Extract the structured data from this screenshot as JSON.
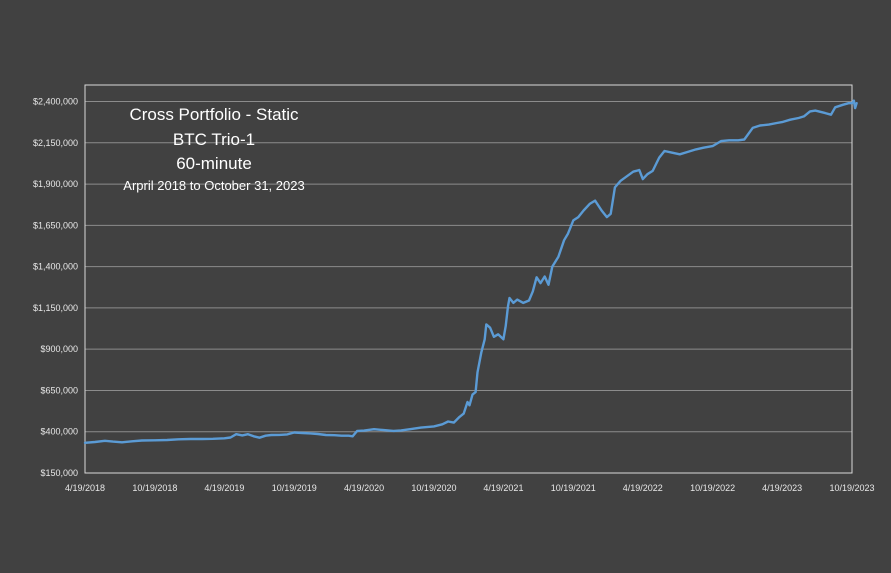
{
  "chart_data": {
    "type": "line",
    "title": [
      "Cross Portfolio - Static",
      "BTC Trio-1",
      "60-minute",
      "Arpril 2018 to October 31, 2023"
    ],
    "xlabel": "",
    "ylabel": "",
    "ylim": [
      150000,
      2500000
    ],
    "y_ticks": [
      {
        "value": 150000,
        "label": "$150,000"
      },
      {
        "value": 400000,
        "label": "$400,000"
      },
      {
        "value": 650000,
        "label": "$650,000"
      },
      {
        "value": 900000,
        "label": "$900,000"
      },
      {
        "value": 1150000,
        "label": "$1,150,000"
      },
      {
        "value": 1400000,
        "label": "$1,400,000"
      },
      {
        "value": 1650000,
        "label": "$1,650,000"
      },
      {
        "value": 1900000,
        "label": "$1,900,000"
      },
      {
        "value": 2150000,
        "label": "$2,150,000"
      },
      {
        "value": 2400000,
        "label": "$2,400,000"
      }
    ],
    "x_range": [
      "2018-04-19",
      "2023-10-19"
    ],
    "x_ticks": [
      {
        "value": "2018-04-19",
        "label": "4/19/2018"
      },
      {
        "value": "2018-10-19",
        "label": "10/19/2018"
      },
      {
        "value": "2019-04-19",
        "label": "4/19/2019"
      },
      {
        "value": "2019-10-19",
        "label": "10/19/2019"
      },
      {
        "value": "2020-04-19",
        "label": "4/19/2020"
      },
      {
        "value": "2020-10-19",
        "label": "10/19/2020"
      },
      {
        "value": "2021-04-19",
        "label": "4/19/2021"
      },
      {
        "value": "2021-10-19",
        "label": "10/19/2021"
      },
      {
        "value": "2022-04-19",
        "label": "4/19/2022"
      },
      {
        "value": "2022-10-19",
        "label": "10/19/2022"
      },
      {
        "value": "2023-04-19",
        "label": "4/19/2023"
      },
      {
        "value": "2023-10-19",
        "label": "10/19/2023"
      }
    ],
    "grid": true,
    "legend": "none",
    "colors": {
      "background": "#414141",
      "plot_border": "#d9d9d9",
      "gridline": "#8c8c8c",
      "series": "#5b9bd5",
      "text": "#e8e8e8",
      "title": "#ffffff"
    },
    "series": [
      {
        "values": [
          [
            "2018-04-19",
            333000
          ],
          [
            "2018-05-15",
            338000
          ],
          [
            "2018-06-10",
            345000
          ],
          [
            "2018-07-01",
            340000
          ],
          [
            "2018-07-25",
            336000
          ],
          [
            "2018-08-20",
            342000
          ],
          [
            "2018-09-15",
            347000
          ],
          [
            "2018-10-19",
            348000
          ],
          [
            "2018-11-20",
            350000
          ],
          [
            "2018-12-20",
            354000
          ],
          [
            "2019-01-20",
            356000
          ],
          [
            "2019-02-20",
            356000
          ],
          [
            "2019-03-20",
            357000
          ],
          [
            "2019-04-19",
            360000
          ],
          [
            "2019-05-05",
            365000
          ],
          [
            "2019-05-20",
            385000
          ],
          [
            "2019-06-05",
            378000
          ],
          [
            "2019-06-20",
            385000
          ],
          [
            "2019-07-05",
            372000
          ],
          [
            "2019-07-20",
            364000
          ],
          [
            "2019-08-05",
            376000
          ],
          [
            "2019-08-20",
            380000
          ],
          [
            "2019-09-10",
            381000
          ],
          [
            "2019-10-01",
            384000
          ],
          [
            "2019-10-19",
            395000
          ],
          [
            "2019-11-10",
            392000
          ],
          [
            "2019-12-01",
            390000
          ],
          [
            "2019-12-20",
            386000
          ],
          [
            "2020-01-10",
            380000
          ],
          [
            "2020-02-01",
            379000
          ],
          [
            "2020-02-20",
            376000
          ],
          [
            "2020-03-10",
            376000
          ],
          [
            "2020-03-20",
            372000
          ],
          [
            "2020-04-01",
            405000
          ],
          [
            "2020-04-19",
            407000
          ],
          [
            "2020-05-15",
            415000
          ],
          [
            "2020-06-10",
            410000
          ],
          [
            "2020-07-05",
            405000
          ],
          [
            "2020-07-25",
            408000
          ],
          [
            "2020-08-20",
            416000
          ],
          [
            "2020-09-15",
            425000
          ],
          [
            "2020-10-19",
            432000
          ],
          [
            "2020-11-10",
            445000
          ],
          [
            "2020-11-25",
            462000
          ],
          [
            "2020-12-10",
            455000
          ],
          [
            "2020-12-25",
            490000
          ],
          [
            "2021-01-05",
            510000
          ],
          [
            "2021-01-15",
            580000
          ],
          [
            "2021-01-20",
            560000
          ],
          [
            "2021-01-28",
            625000
          ],
          [
            "2021-02-05",
            640000
          ],
          [
            "2021-02-10",
            760000
          ],
          [
            "2021-02-20",
            880000
          ],
          [
            "2021-03-01",
            960000
          ],
          [
            "2021-03-05",
            1050000
          ],
          [
            "2021-03-15",
            1030000
          ],
          [
            "2021-03-25",
            975000
          ],
          [
            "2021-04-05",
            990000
          ],
          [
            "2021-04-19",
            960000
          ],
          [
            "2021-04-25",
            1040000
          ],
          [
            "2021-05-01",
            1160000
          ],
          [
            "2021-05-05",
            1210000
          ],
          [
            "2021-05-15",
            1180000
          ],
          [
            "2021-05-25",
            1200000
          ],
          [
            "2021-06-10",
            1180000
          ],
          [
            "2021-06-25",
            1195000
          ],
          [
            "2021-07-05",
            1250000
          ],
          [
            "2021-07-15",
            1335000
          ],
          [
            "2021-07-25",
            1300000
          ],
          [
            "2021-08-05",
            1340000
          ],
          [
            "2021-08-15",
            1290000
          ],
          [
            "2021-08-25",
            1400000
          ],
          [
            "2021-09-10",
            1460000
          ],
          [
            "2021-09-25",
            1560000
          ],
          [
            "2021-10-05",
            1600000
          ],
          [
            "2021-10-19",
            1680000
          ],
          [
            "2021-11-01",
            1700000
          ],
          [
            "2021-11-15",
            1740000
          ],
          [
            "2021-12-01",
            1780000
          ],
          [
            "2021-12-15",
            1800000
          ],
          [
            "2022-01-01",
            1740000
          ],
          [
            "2022-01-15",
            1700000
          ],
          [
            "2022-01-25",
            1720000
          ],
          [
            "2022-02-05",
            1880000
          ],
          [
            "2022-02-20",
            1920000
          ],
          [
            "2022-03-10",
            1950000
          ],
          [
            "2022-03-25",
            1975000
          ],
          [
            "2022-04-10",
            1985000
          ],
          [
            "2022-04-19",
            1930000
          ],
          [
            "2022-05-01",
            1960000
          ],
          [
            "2022-05-15",
            1980000
          ],
          [
            "2022-06-01",
            2060000
          ],
          [
            "2022-06-15",
            2100000
          ],
          [
            "2022-07-05",
            2090000
          ],
          [
            "2022-07-25",
            2080000
          ],
          [
            "2022-08-15",
            2095000
          ],
          [
            "2022-09-05",
            2110000
          ],
          [
            "2022-09-25",
            2120000
          ],
          [
            "2022-10-19",
            2130000
          ],
          [
            "2022-11-10",
            2160000
          ],
          [
            "2022-12-01",
            2165000
          ],
          [
            "2022-12-25",
            2165000
          ],
          [
            "2023-01-10",
            2170000
          ],
          [
            "2023-02-01",
            2240000
          ],
          [
            "2023-02-20",
            2255000
          ],
          [
            "2023-03-15",
            2260000
          ],
          [
            "2023-04-05",
            2270000
          ],
          [
            "2023-04-19",
            2275000
          ],
          [
            "2023-05-10",
            2290000
          ],
          [
            "2023-06-01",
            2300000
          ],
          [
            "2023-06-15",
            2310000
          ],
          [
            "2023-07-01",
            2340000
          ],
          [
            "2023-07-15",
            2345000
          ],
          [
            "2023-08-10",
            2330000
          ],
          [
            "2023-08-25",
            2320000
          ],
          [
            "2023-09-05",
            2365000
          ],
          [
            "2023-09-25",
            2380000
          ],
          [
            "2023-10-10",
            2390000
          ],
          [
            "2023-10-19",
            2390000
          ],
          [
            "2023-10-24",
            2405000
          ],
          [
            "2023-10-27",
            2360000
          ],
          [
            "2023-10-31",
            2390000
          ]
        ]
      }
    ]
  }
}
